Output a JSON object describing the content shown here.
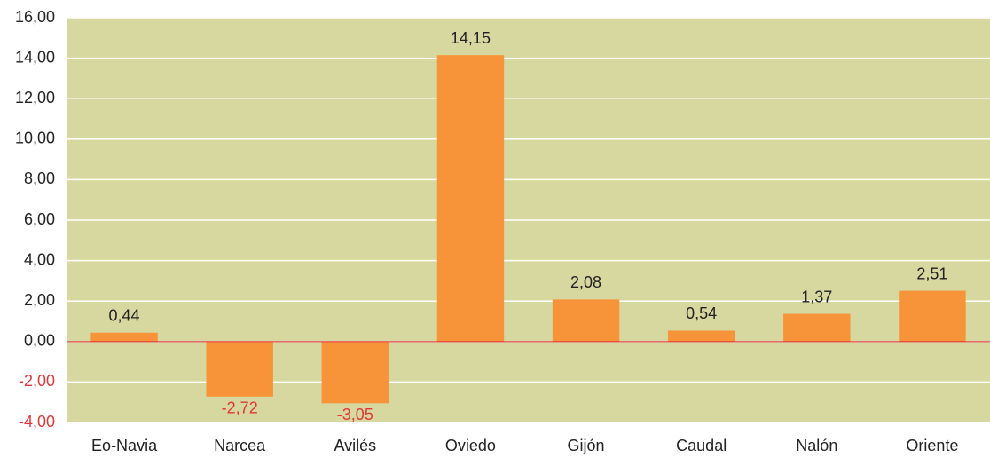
{
  "chart_data": {
    "type": "bar",
    "categories": [
      "Eo-Navia",
      "Narcea",
      "Avilés",
      "Oviedo",
      "Gijón",
      "Caudal",
      "Nalón",
      "Oriente"
    ],
    "values": [
      0.44,
      -2.72,
      -3.05,
      14.15,
      2.08,
      0.54,
      1.37,
      2.51
    ],
    "value_labels": [
      "0,44",
      "-2,72",
      "-3,05",
      "14,15",
      "2,08",
      "0,54",
      "1,37",
      "2,51"
    ],
    "color": "#f7943a",
    "negative_color": "#e0383a",
    "background": "#d7d7a0",
    "grid": true,
    "ylim": [
      -4,
      16
    ],
    "yticks": [
      {
        "value": -4,
        "label": "-4,00"
      },
      {
        "value": -2,
        "label": "-2,00"
      },
      {
        "value": 0,
        "label": "0,00"
      },
      {
        "value": 2,
        "label": "2,00"
      },
      {
        "value": 4,
        "label": "4,00"
      },
      {
        "value": 6,
        "label": "6,00"
      },
      {
        "value": 8,
        "label": "8,00"
      },
      {
        "value": 10,
        "label": "10,00"
      },
      {
        "value": 12,
        "label": "12,00"
      },
      {
        "value": 14,
        "label": "14,00"
      },
      {
        "value": 16,
        "label": "16,00"
      }
    ]
  }
}
